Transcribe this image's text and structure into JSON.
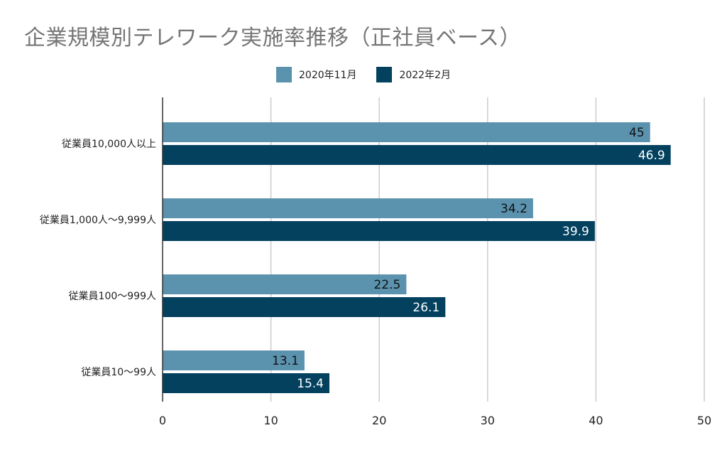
{
  "chart_data": {
    "type": "bar",
    "orientation": "horizontal",
    "title": "企業規模別テレワーク実施率推移（正社員ベース）",
    "categories": [
      "従業員10,000人以上",
      "従業員1,000人～9,999人",
      "従業員100～999人",
      "従業員10～99人"
    ],
    "series": [
      {
        "name": "2020年11月",
        "color": "#5b92ae",
        "label_color": "#111111",
        "values": [
          45,
          34.2,
          22.5,
          13.1
        ]
      },
      {
        "name": "2022年2月",
        "color": "#03415f",
        "label_color": "#ffffff",
        "values": [
          46.9,
          39.9,
          26.1,
          15.4
        ]
      }
    ],
    "xlim": [
      0,
      50
    ],
    "xticks": [
      0,
      10,
      20,
      30,
      40,
      50
    ],
    "grid": true,
    "legend_position": "top"
  }
}
